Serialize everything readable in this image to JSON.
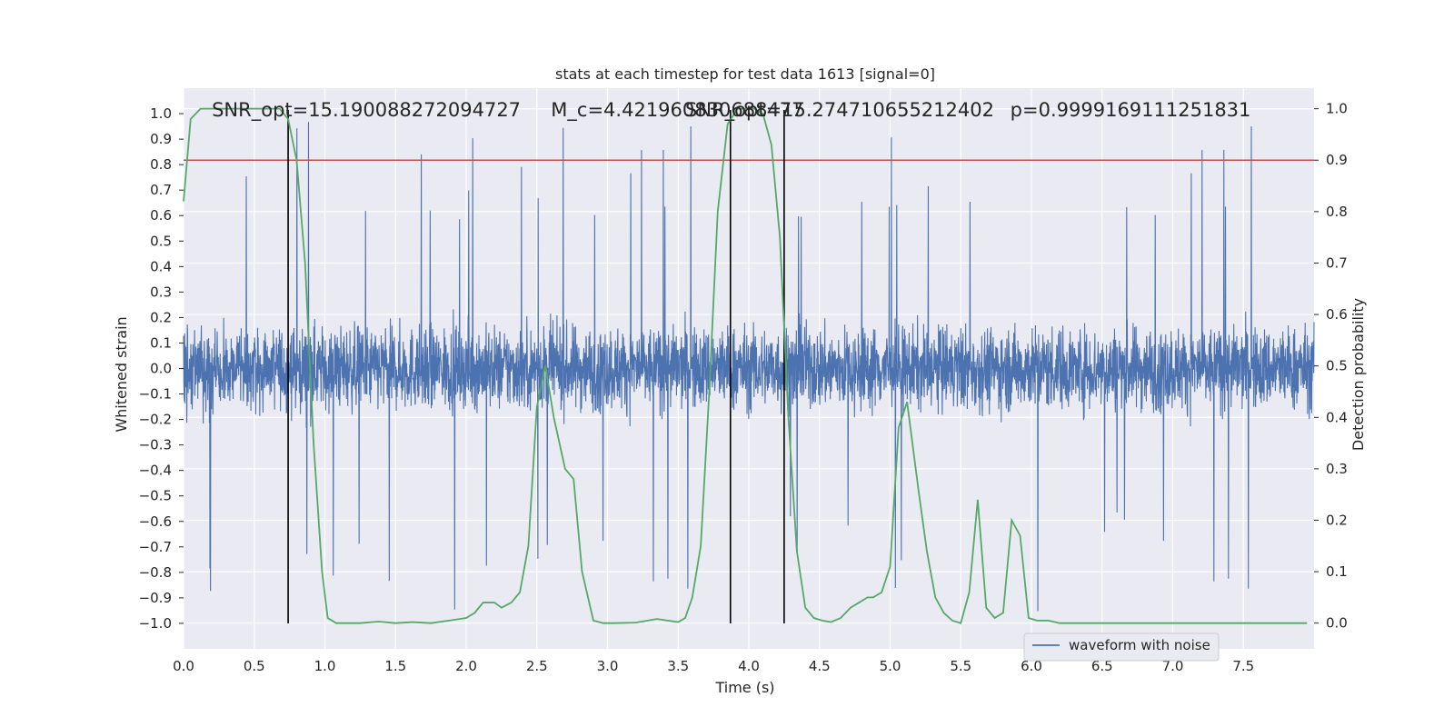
{
  "chart_data": {
    "type": "line",
    "title": "stats at each timestep for test data 1613 [signal=0]",
    "xlabel": "Time (s)",
    "ylabel": "Whitened strain",
    "y2label": "Detection probability",
    "xlim": [
      0,
      8
    ],
    "ylim": [
      -1.1,
      1.1
    ],
    "y2lim": [
      -0.05,
      1.04
    ],
    "x_ticks": [
      "0.0",
      "0.5",
      "1.0",
      "1.5",
      "2.0",
      "2.5",
      "3.0",
      "3.5",
      "4.0",
      "4.5",
      "5.0",
      "5.5",
      "6.0",
      "6.5",
      "7.0",
      "7.5"
    ],
    "y_ticks": [
      "1.0",
      "0.9",
      "0.8",
      "0.7",
      "0.6",
      "0.5",
      "0.4",
      "0.3",
      "0.2",
      "0.1",
      "0.0",
      "−0.1",
      "−0.2",
      "−0.3",
      "−0.4",
      "−0.5",
      "−0.6",
      "−0.7",
      "−0.8",
      "−0.9",
      "−1.0"
    ],
    "y2_ticks": [
      "1.0",
      "0.9",
      "0.8",
      "0.7",
      "0.6",
      "0.5",
      "0.4",
      "0.3",
      "0.2",
      "0.1",
      "0.0"
    ],
    "grid": true,
    "legend_position": "bottom-right",
    "annotations": [
      {
        "text": "SNR_opt=15.190088272094727",
        "x": 0.2,
        "y": 1.0
      },
      {
        "text": "M_c=4.421960830688477",
        "x": 2.6,
        "y": 1.0
      },
      {
        "text": "SNR_opt=15.274710655212402",
        "x": 3.55,
        "y": 1.0
      },
      {
        "text": "p=0.9999169111251831",
        "x": 5.85,
        "y": 1.0
      }
    ],
    "vertical_lines_x": [
      0.74,
      3.87,
      4.25
    ],
    "threshold_probability": 0.9,
    "series": [
      {
        "name": "waveform with noise",
        "axis": "left",
        "color": "#4c72b0",
        "description_amplitude_typical": 0.4,
        "description_amplitude_peak": 0.98
      },
      {
        "axis": "right",
        "color": "#55a868",
        "x": [
          0.0,
          0.05,
          0.12,
          0.2,
          0.3,
          0.4,
          0.5,
          0.6,
          0.68,
          0.74,
          0.8,
          0.86,
          0.92,
          0.98,
          1.02,
          1.08,
          1.15,
          1.25,
          1.38,
          1.5,
          1.62,
          1.75,
          1.88,
          2.0,
          2.06,
          2.12,
          2.2,
          2.25,
          2.32,
          2.38,
          2.44,
          2.5,
          2.56,
          2.62,
          2.7,
          2.76,
          2.82,
          2.9,
          2.97,
          3.05,
          3.2,
          3.35,
          3.5,
          3.55,
          3.6,
          3.66,
          3.72,
          3.78,
          3.85,
          3.92,
          3.97,
          4.04,
          4.1,
          4.16,
          4.22,
          4.28,
          4.34,
          4.4,
          4.46,
          4.52,
          4.58,
          4.65,
          4.72,
          4.78,
          4.84,
          4.88,
          4.94,
          5.0,
          5.06,
          5.12,
          5.2,
          5.26,
          5.32,
          5.38,
          5.44,
          5.5,
          5.56,
          5.62,
          5.68,
          5.74,
          5.8,
          5.86,
          5.92,
          5.98,
          6.04,
          6.12,
          6.2,
          6.35,
          6.6,
          7.0,
          7.3,
          7.6,
          7.95
        ],
        "y": [
          0.82,
          0.98,
          1.0,
          1.0,
          1.0,
          1.0,
          1.0,
          1.0,
          1.0,
          0.98,
          0.9,
          0.7,
          0.35,
          0.1,
          0.01,
          0.0,
          0.0,
          0.0,
          0.003,
          0.0,
          0.002,
          0.0,
          0.005,
          0.01,
          0.02,
          0.04,
          0.04,
          0.03,
          0.04,
          0.06,
          0.15,
          0.42,
          0.5,
          0.4,
          0.3,
          0.28,
          0.1,
          0.005,
          0.0,
          0.0,
          0.001,
          0.008,
          0.002,
          0.01,
          0.05,
          0.15,
          0.45,
          0.8,
          0.97,
          1.0,
          1.0,
          1.0,
          0.99,
          0.93,
          0.75,
          0.4,
          0.14,
          0.03,
          0.01,
          0.005,
          0.002,
          0.01,
          0.03,
          0.04,
          0.05,
          0.05,
          0.06,
          0.11,
          0.38,
          0.43,
          0.26,
          0.14,
          0.05,
          0.02,
          0.005,
          0.0,
          0.06,
          0.24,
          0.03,
          0.01,
          0.02,
          0.2,
          0.17,
          0.01,
          0.005,
          0.005,
          0.0,
          0.0,
          0.0,
          0.0,
          0.0,
          0.0,
          0.0
        ]
      }
    ]
  }
}
